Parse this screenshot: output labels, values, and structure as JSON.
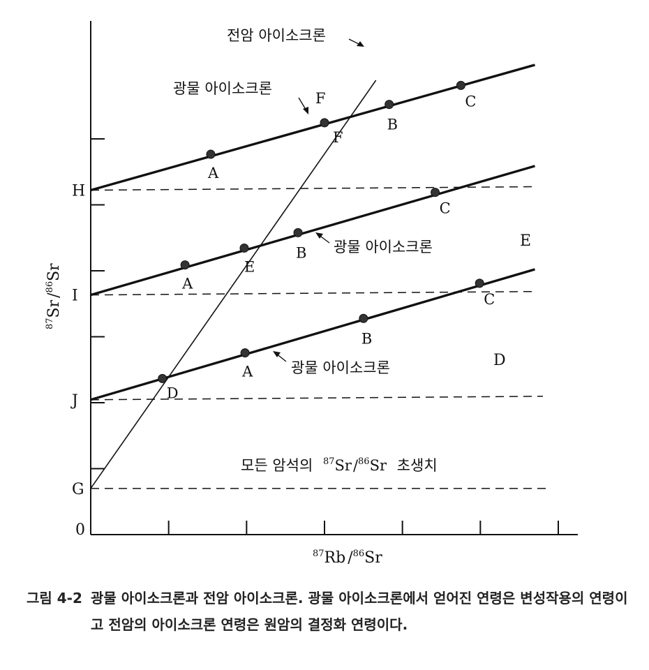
{
  "chart_data": {
    "type": "line",
    "xlabel_base": "Rb",
    "xlabel_num_sup": "87",
    "xlabel_den_sup": "86",
    "xlabel_den": "Sr",
    "ylabel_base": "Sr",
    "ylabel_num_sup": "87",
    "ylabel_den_sup": "86",
    "ylabel_den": "Sr",
    "origin_label": "0",
    "xlim": [
      0,
      6
    ],
    "ylim": [
      0,
      6
    ],
    "x_ticks": [
      1,
      2,
      3,
      4,
      5,
      6
    ],
    "y_ticks": [
      0.9,
      1.8,
      2.7,
      3.6,
      4.5,
      5.4
    ],
    "initial_ratios": [
      {
        "label": "G",
        "y": 0.63
      },
      {
        "label": "J",
        "y": 1.84
      },
      {
        "label": "I",
        "y": 3.27
      },
      {
        "label": "H",
        "y": 4.7
      }
    ],
    "whole_rock_isochron": {
      "label": "전암 아이소크론",
      "from": [
        0,
        0.63
      ],
      "to": [
        3.66,
        6.2
      ]
    },
    "mineral_isochrons": [
      {
        "label": "광물 아이소크론",
        "from": [
          0,
          1.84
        ],
        "to": [
          5.7,
          3.62
        ],
        "points": [
          {
            "label": "D",
            "x": 0.92,
            "y": 2.13
          },
          {
            "label": "A",
            "x": 1.98,
            "y": 2.48
          },
          {
            "label": "B",
            "x": 3.5,
            "y": 2.95
          },
          {
            "label": "C",
            "x": 4.99,
            "y": 3.43
          }
        ]
      },
      {
        "label": "광물 아이소크론",
        "from": [
          0,
          3.27
        ],
        "to": [
          5.7,
          5.03
        ],
        "points": [
          {
            "label": "A",
            "x": 1.21,
            "y": 3.68
          },
          {
            "label": "E",
            "x": 1.97,
            "y": 3.91
          },
          {
            "label": "B",
            "x": 2.66,
            "y": 4.12
          },
          {
            "label": "C",
            "x": 4.42,
            "y": 4.67
          }
        ]
      },
      {
        "label": "광물 아이소크론",
        "from": [
          0,
          4.7
        ],
        "to": [
          5.7,
          6.41
        ],
        "points": [
          {
            "label": "A",
            "x": 1.54,
            "y": 5.19
          },
          {
            "label": "F",
            "x": 3.0,
            "y": 5.62
          },
          {
            "label": "B",
            "x": 3.83,
            "y": 5.87
          },
          {
            "label": "C",
            "x": 4.75,
            "y": 6.13
          }
        ]
      }
    ],
    "baseline_label_prefix": "모든 암석의",
    "baseline_label_suffix": "초생치",
    "extra_labels": {
      "E": "E",
      "D": "D",
      "F": "F"
    }
  },
  "caption": {
    "label": "그림 4-2",
    "text": "광물 아이소크론과 전암 아이소크론. 광물 아이소크론에서 얻어진 연령은 변성작용의 연령이고 전암의 아이소크론 연령은 원암의 결정화 연령이다."
  }
}
